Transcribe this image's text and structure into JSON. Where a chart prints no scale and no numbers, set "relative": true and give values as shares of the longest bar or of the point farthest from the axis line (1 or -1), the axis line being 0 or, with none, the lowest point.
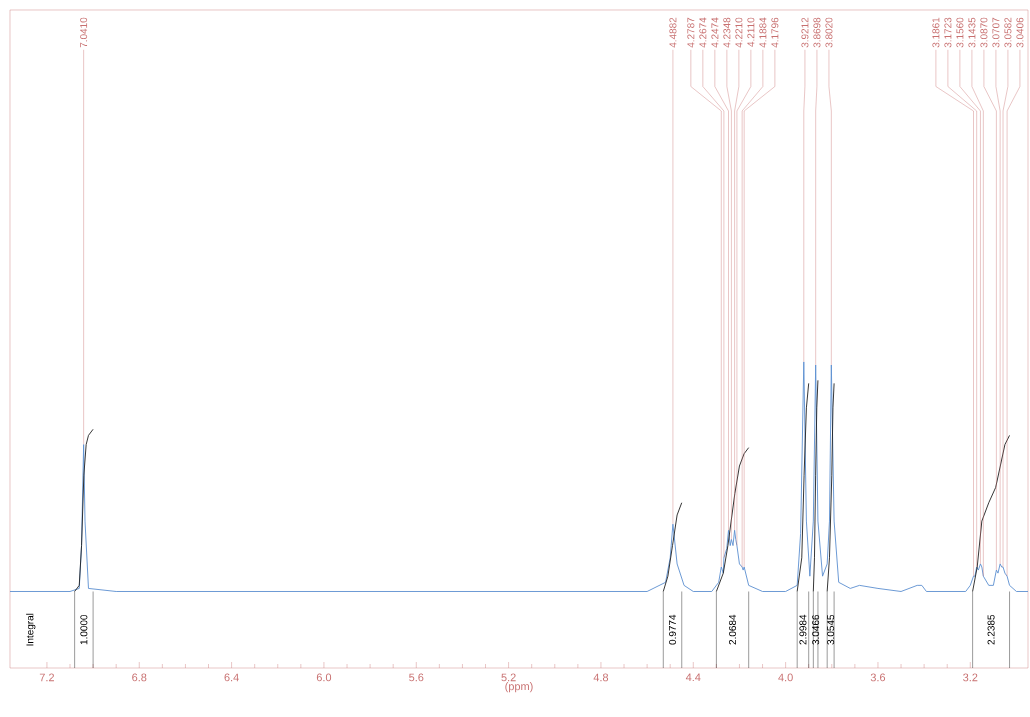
{
  "chart_data": {
    "type": "line",
    "relative": true,
    "xlabel": "(ppm)",
    "xlim": [
      7.36,
      2.95
    ],
    "xticks": [
      7.2,
      6.8,
      6.4,
      {
        "value": 6,
        "label": "6.0"
      },
      5.6,
      5.2,
      4.8,
      4.4,
      {
        "value": 4,
        "label": "4.0"
      },
      3.6,
      3.2
    ],
    "series": [
      {
        "color": "#5b8fd0",
        "x": [
          7.36,
          7.2,
          7.1,
          7.06,
          7.05,
          7.041,
          7.035,
          7.02,
          6.9,
          6.5,
          6.0,
          5.5,
          5.0,
          4.6,
          4.52,
          4.5,
          4.4882,
          4.47,
          4.44,
          4.4,
          4.32,
          4.29,
          4.2787,
          4.27,
          4.2674,
          4.255,
          4.2474,
          4.24,
          4.2348,
          4.228,
          4.221,
          4.216,
          4.211,
          4.2,
          4.1884,
          4.184,
          4.1796,
          4.16,
          4.1,
          4.0,
          3.95,
          3.935,
          3.9212,
          3.91,
          3.895,
          3.88,
          3.8698,
          3.86,
          3.84,
          3.82,
          3.81,
          3.802,
          3.79,
          3.77,
          3.72,
          3.68,
          3.6,
          3.5,
          3.43,
          3.425,
          3.415,
          3.41,
          3.39,
          3.3,
          3.22,
          3.2,
          3.1861,
          3.18,
          3.1723,
          3.165,
          3.156,
          3.15,
          3.1435,
          3.12,
          3.1,
          3.087,
          3.08,
          3.0707,
          3.064,
          3.0582,
          3.05,
          3.0406,
          3.03,
          3.0,
          2.95
        ],
        "values": [
          0.25,
          0.25,
          0.25,
          0.26,
          0.4,
          0.73,
          0.48,
          0.26,
          0.25,
          0.25,
          0.25,
          0.25,
          0.25,
          0.25,
          0.28,
          0.36,
          0.47,
          0.34,
          0.27,
          0.25,
          0.25,
          0.28,
          0.33,
          0.31,
          0.36,
          0.39,
          0.45,
          0.4,
          0.42,
          0.4,
          0.45,
          0.42,
          0.4,
          0.34,
          0.33,
          0.32,
          0.33,
          0.27,
          0.25,
          0.25,
          0.27,
          0.44,
          1.0,
          0.48,
          0.3,
          0.48,
          0.99,
          0.48,
          0.3,
          0.34,
          0.48,
          0.99,
          0.48,
          0.28,
          0.26,
          0.27,
          0.26,
          0.25,
          0.27,
          0.27,
          0.27,
          0.27,
          0.25,
          0.25,
          0.25,
          0.27,
          0.3,
          0.3,
          0.33,
          0.32,
          0.34,
          0.33,
          0.3,
          0.27,
          0.27,
          0.32,
          0.31,
          0.34,
          0.33,
          0.33,
          0.31,
          0.3,
          0.27,
          0.25,
          0.25
        ]
      },
      {
        "color": "#202020",
        "x": [
          7.08,
          7.06,
          7.05,
          7.04,
          7.03,
          7.02,
          7.0
        ],
        "values": [
          0.25,
          0.27,
          0.4,
          0.63,
          0.73,
          0.76,
          0.78
        ]
      },
      {
        "color": "#202020",
        "x": [
          4.53,
          4.51,
          4.49,
          4.47,
          4.45
        ],
        "values": [
          0.25,
          0.3,
          0.4,
          0.5,
          0.54
        ]
      },
      {
        "color": "#202020",
        "x": [
          4.3,
          4.27,
          4.25,
          4.22,
          4.2,
          4.18,
          4.16
        ],
        "values": [
          0.25,
          0.31,
          0.4,
          0.57,
          0.66,
          0.7,
          0.72
        ]
      },
      {
        "color": "#202020",
        "x": [
          3.95,
          3.93,
          3.92,
          3.91,
          3.9
        ],
        "values": [
          0.25,
          0.36,
          0.63,
          0.85,
          0.93
        ]
      },
      {
        "color": "#202020",
        "x": [
          3.88,
          3.875,
          3.87,
          3.865,
          3.86
        ],
        "values": [
          0.25,
          0.36,
          0.63,
          0.85,
          0.94
        ]
      },
      {
        "color": "#202020",
        "x": [
          3.82,
          3.81,
          3.8,
          3.795,
          3.79
        ],
        "values": [
          0.25,
          0.36,
          0.63,
          0.85,
          0.93
        ]
      },
      {
        "color": "#202020",
        "x": [
          3.19,
          3.17,
          3.15,
          3.12,
          3.09,
          3.07,
          3.05,
          3.03
        ],
        "values": [
          0.25,
          0.33,
          0.48,
          0.54,
          0.59,
          0.66,
          0.73,
          0.76
        ]
      }
    ],
    "annotations": [
      {
        "text": "7.0410",
        "x": 7.041,
        "y": 0.73
      },
      {
        "text": "4.4882",
        "x": 4.4882,
        "y": 0.47
      },
      {
        "text": "4.2787",
        "x": 4.2787,
        "y": 0.33
      },
      {
        "text": "4.2674",
        "x": 4.2674,
        "y": 0.36
      },
      {
        "text": "4.2474",
        "x": 4.2474,
        "y": 0.45
      },
      {
        "text": "4.2348",
        "x": 4.2348,
        "y": 0.42
      },
      {
        "text": "4.2210",
        "x": 4.221,
        "y": 0.45
      },
      {
        "text": "4.2110",
        "x": 4.211,
        "y": 0.4
      },
      {
        "text": "4.1884",
        "x": 4.1884,
        "y": 0.33
      },
      {
        "text": "4.1796",
        "x": 4.1796,
        "y": 0.33
      },
      {
        "text": "3.9212",
        "x": 3.9212,
        "y": 1.0
      },
      {
        "text": "3.8698",
        "x": 3.8698,
        "y": 0.99
      },
      {
        "text": "3.8020",
        "x": 3.802,
        "y": 0.99
      },
      {
        "text": "3.1861",
        "x": 3.1861,
        "y": 0.3
      },
      {
        "text": "3.1723",
        "x": 3.1723,
        "y": 0.33
      },
      {
        "text": "3.1560",
        "x": 3.156,
        "y": 0.34
      },
      {
        "text": "3.1435",
        "x": 3.1435,
        "y": 0.3
      },
      {
        "text": "3.0870",
        "x": 3.087,
        "y": 0.32
      },
      {
        "text": "3.0707",
        "x": 3.0707,
        "y": 0.34
      },
      {
        "text": "3.0582",
        "x": 3.0582,
        "y": 0.33
      },
      {
        "text": "3.0406",
        "x": 3.0406,
        "y": 0.3
      },
      "Integral",
      "1.0000",
      "0.9774",
      "2.0684",
      "2.9984",
      "3.0466",
      "3.0545",
      "2.2385"
    ]
  }
}
